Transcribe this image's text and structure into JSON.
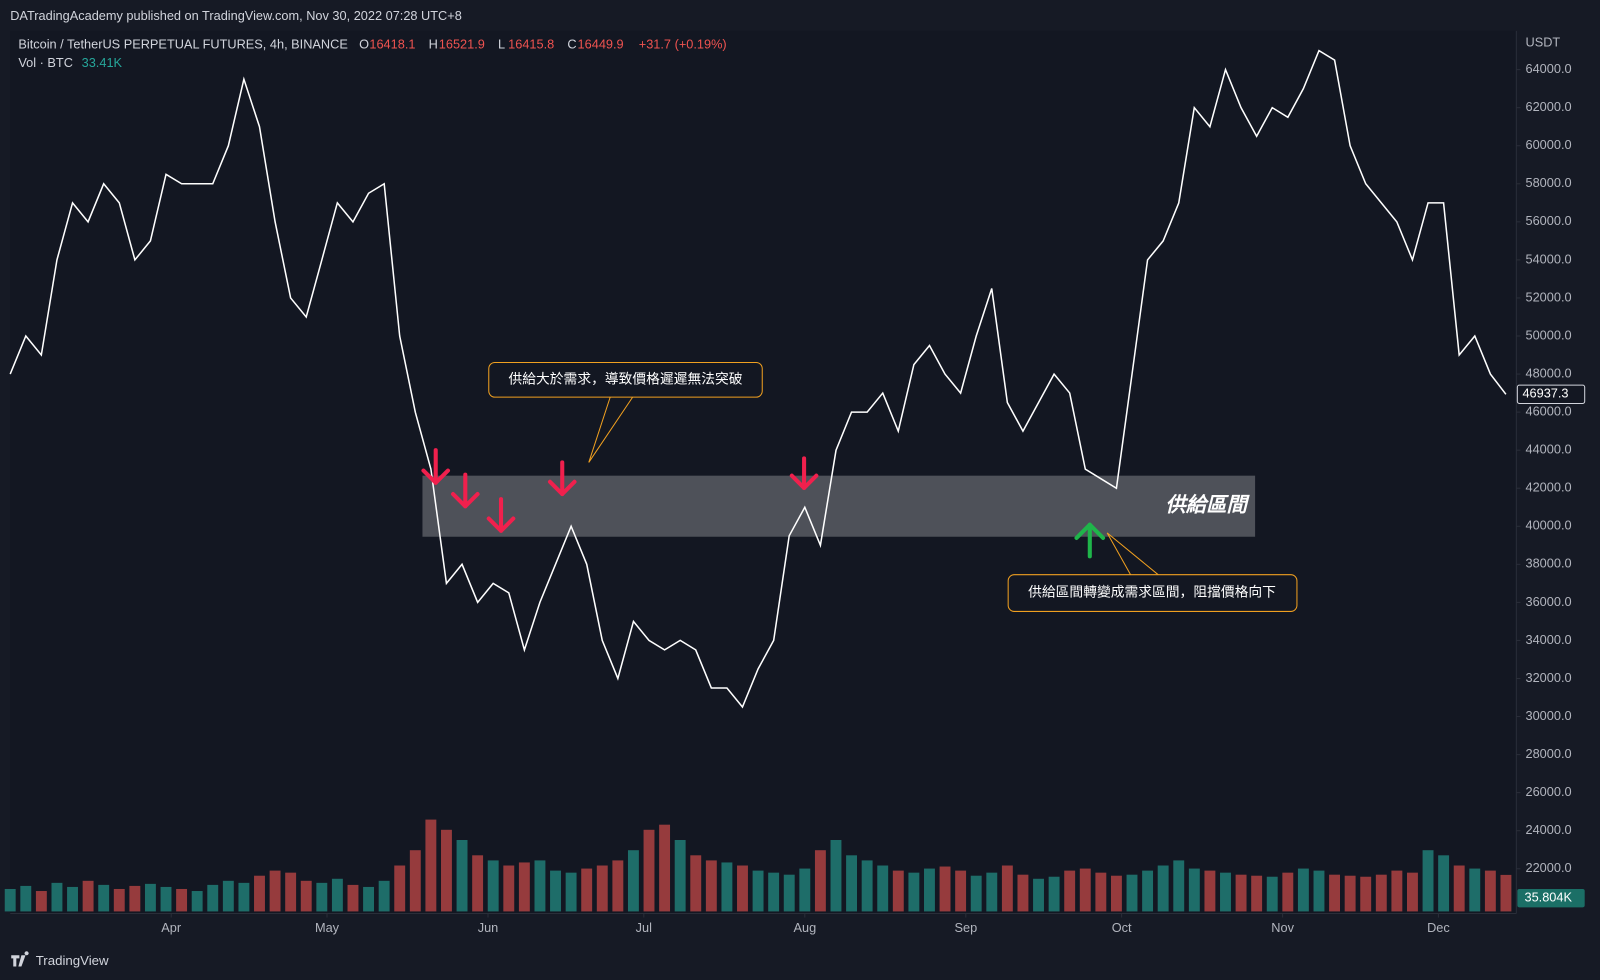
{
  "header": {
    "publisher": "DATradingAcademy published on TradingView.com, Nov 30, 2022 07:28 UTC+8"
  },
  "footer": {
    "brand": "TradingView"
  },
  "chart_data": {
    "type": "line",
    "currency": "USDT",
    "ohlc": [
      {
        "key": "O",
        "value": 16418.1
      },
      {
        "key": "H",
        "value": 16521.9
      },
      {
        "key": "L",
        "value": 16415.8
      },
      {
        "key": "C",
        "value": 16449.9
      }
    ],
    "change": "+31.7 (+0.19%)",
    "x": [
      0,
      3,
      6,
      9,
      12,
      15,
      18,
      21,
      24,
      27,
      30,
      33,
      36,
      39,
      42,
      45,
      48,
      51,
      54,
      57,
      60,
      63,
      66,
      69,
      72,
      75,
      78,
      81,
      84,
      87,
      90,
      93,
      96,
      99,
      102,
      105,
      108,
      111,
      114,
      117,
      120,
      123,
      126,
      129,
      132,
      135,
      138,
      141,
      144,
      147,
      150,
      153,
      156,
      159,
      162,
      165,
      168,
      171,
      174,
      177,
      180,
      183,
      186,
      189,
      192,
      195,
      198,
      201,
      204,
      207,
      210,
      213,
      216,
      219,
      222,
      225,
      228,
      231,
      234,
      237,
      240,
      243,
      246,
      249,
      252,
      255,
      258,
      261,
      264,
      267,
      270,
      273,
      276,
      279,
      282,
      285,
      288
    ],
    "xlim": [
      0,
      290
    ],
    "xticks": [
      {
        "value": 31,
        "label": "Apr"
      },
      {
        "value": 61,
        "label": "May"
      },
      {
        "value": 92,
        "label": "Jun"
      },
      {
        "value": 122,
        "label": "Jul"
      },
      {
        "value": 153,
        "label": "Aug"
      },
      {
        "value": 184,
        "label": "Sep"
      },
      {
        "value": 214,
        "label": "Oct"
      },
      {
        "value": 245,
        "label": "Nov"
      },
      {
        "value": 275,
        "label": "Dec"
      }
    ],
    "ylim": [
      19650,
      66040
    ],
    "yticks": [
      {
        "value": 22000,
        "label": "22000.0"
      },
      {
        "value": 24000,
        "label": "24000.0"
      },
      {
        "value": 26000,
        "label": "26000.0"
      },
      {
        "value": 28000,
        "label": "28000.0"
      },
      {
        "value": 30000,
        "label": "30000.0"
      },
      {
        "value": 32000,
        "label": "32000.0"
      },
      {
        "value": 34000,
        "label": "34000.0"
      },
      {
        "value": 36000,
        "label": "36000.0"
      },
      {
        "value": 38000,
        "label": "38000.0"
      },
      {
        "value": 40000,
        "label": "40000.0"
      },
      {
        "value": 42000,
        "label": "42000.0"
      },
      {
        "value": 44000,
        "label": "44000.0"
      },
      {
        "value": 46000,
        "label": "46000.0"
      },
      {
        "value": 48000,
        "label": "48000.0"
      },
      {
        "value": 50000,
        "label": "50000.0"
      },
      {
        "value": 52000,
        "label": "52000.0"
      },
      {
        "value": 54000,
        "label": "54000.0"
      },
      {
        "value": 56000,
        "label": "56000.0"
      },
      {
        "value": 58000,
        "label": "58000.0"
      },
      {
        "value": 60000,
        "label": "60000.0"
      },
      {
        "value": 62000,
        "label": "62000.0"
      },
      {
        "value": 64000,
        "label": "64000.0"
      }
    ],
    "y2lim": [
      0,
      300
    ],
    "grid": true,
    "series": [
      {
        "name": "Bitcoin / TetherUS PERPETUAL FUTURES, 4h, BINANCE",
        "color": "#ffffff",
        "values": [
          48000,
          50000,
          49000,
          54000,
          57000,
          56000,
          58000,
          57000,
          54000,
          55000,
          58500,
          58000,
          58000,
          58000,
          60000,
          63500,
          61000,
          56000,
          52000,
          51000,
          54000,
          57000,
          56000,
          57500,
          58000,
          50000,
          46000,
          43000,
          37000,
          38000,
          36000,
          37000,
          36500,
          33500,
          36000,
          38000,
          40000,
          38000,
          34000,
          32000,
          35000,
          34000,
          33500,
          34000,
          33500,
          31500,
          31500,
          30500,
          32500,
          34000,
          39500,
          41000,
          39000,
          44000,
          46000,
          46000,
          47000,
          45000,
          48500,
          49500,
          48000,
          47000,
          50000,
          52500,
          46500,
          45000,
          46500,
          48000,
          47000,
          43000,
          42500,
          42000,
          48000,
          54000,
          55000,
          57000,
          62000,
          61000,
          64000,
          62000,
          60500,
          62000,
          61500,
          63000,
          65000,
          64500,
          60000,
          58000,
          57000,
          56000,
          54000,
          57000,
          57000,
          49000,
          50000,
          48000,
          46937.3
        ]
      },
      {
        "name": "Vol · BTC",
        "axis": "y2",
        "legend_value": "33.41K",
        "up_color": "#26a69a",
        "down_color": "#ef5350",
        "last_label": "35.804K",
        "values": [
          22,
          25,
          20,
          28,
          24,
          30,
          26,
          22,
          25,
          27,
          24,
          22,
          20,
          26,
          30,
          28,
          35,
          40,
          38,
          30,
          28,
          32,
          26,
          24,
          30,
          45,
          60,
          90,
          80,
          70,
          55,
          50,
          45,
          48,
          50,
          40,
          38,
          42,
          45,
          50,
          60,
          80,
          85,
          70,
          55,
          50,
          48,
          45,
          40,
          38,
          36,
          42,
          60,
          70,
          55,
          50,
          45,
          40,
          38,
          42,
          44,
          40,
          35,
          38,
          45,
          36,
          32,
          34,
          40,
          42,
          38,
          35,
          36,
          40,
          45,
          50,
          42,
          40,
          38,
          36,
          35,
          34,
          38,
          42,
          40,
          36,
          35,
          34,
          36,
          40,
          38,
          60,
          55,
          45,
          42,
          40,
          35.804
        ]
      }
    ],
    "zone": {
      "label": "供給區間",
      "range": [
        39450,
        42660
      ]
    },
    "annotations": [
      "供給大於需求，導致價格遲遲無法突破",
      "供給區間轉變成需求區間，阻擋價格向下"
    ]
  }
}
